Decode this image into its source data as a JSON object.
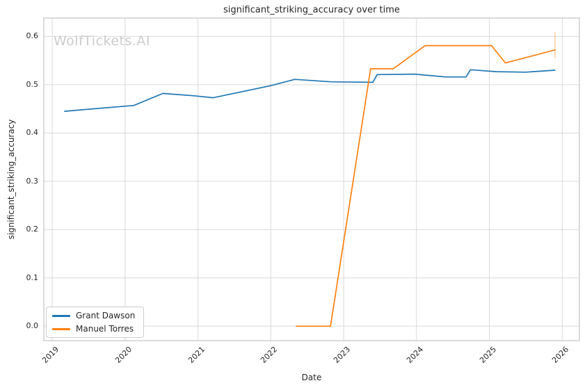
{
  "watermark": "WolfTickets.AI",
  "chart_data": {
    "type": "line",
    "title": "significant_striking_accuracy over time",
    "xlabel": "Date",
    "ylabel": "significant_striking_accuracy",
    "x_units": "decimal_year",
    "x_ticks": [
      2019,
      2020,
      2021,
      2022,
      2023,
      2024,
      2025,
      2026
    ],
    "x_tick_labels": [
      "2019",
      "2020",
      "2021",
      "2022",
      "2023",
      "2024",
      "2025",
      "2026"
    ],
    "y_ticks": [
      0.0,
      0.1,
      0.2,
      0.3,
      0.4,
      0.5,
      0.6
    ],
    "y_tick_labels": [
      "0.0",
      "0.1",
      "0.2",
      "0.3",
      "0.4",
      "0.5",
      "0.6"
    ],
    "xlim": [
      2018.885,
      2026.235
    ],
    "ylim": [
      -0.03,
      0.638
    ],
    "grid": true,
    "legend_position": "lower left",
    "series": [
      {
        "name": "Grant Dawson",
        "color": "#1f77b4",
        "x": [
          2019.17,
          2019.4,
          2020.12,
          2020.52,
          2020.95,
          2021.21,
          2022.0,
          2022.33,
          2022.83,
          2023.4,
          2023.46,
          2023.97,
          2024.4,
          2024.68,
          2024.74,
          2025.1,
          2025.5,
          2025.9
        ],
        "y": [
          0.445,
          0.448,
          0.457,
          0.482,
          0.477,
          0.473,
          0.498,
          0.511,
          0.506,
          0.505,
          0.521,
          0.522,
          0.516,
          0.516,
          0.531,
          0.527,
          0.526,
          0.53
        ]
      },
      {
        "name": "Manuel Torres",
        "color": "#ff7f0e",
        "x": [
          2022.35,
          2022.82,
          2023.37,
          2023.68,
          2024.12,
          2025.03,
          2025.22,
          2025.9
        ],
        "y": [
          0.0,
          0.0,
          0.533,
          0.533,
          0.581,
          0.581,
          0.545,
          0.572
        ]
      }
    ],
    "end_marker": {
      "series": "Manuel Torres",
      "x": 2025.9,
      "y_from": 0.555,
      "y_to": 0.608,
      "color": "#ff7f0e",
      "opacity": 0.3
    }
  },
  "colors": {
    "background": "#ffffff",
    "grid": "#d9d9d9",
    "axis_border": "#c3c3c3",
    "text": "#262626",
    "watermark": "#cccccc"
  }
}
